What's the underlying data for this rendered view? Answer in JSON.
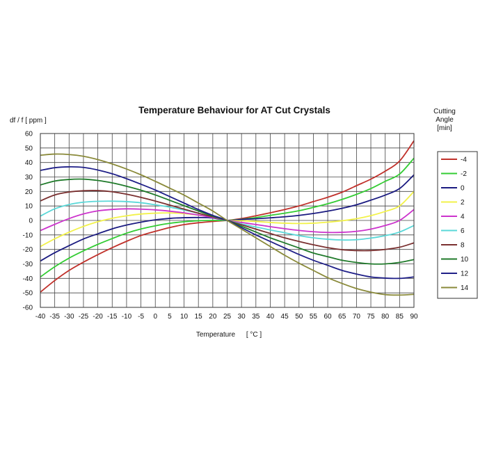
{
  "chart_data": {
    "type": "line",
    "title": "Temperature Behaviour for AT Cut Crystals",
    "xlabel": "Temperature",
    "xunit": "[ °C ]",
    "ylabel": "df / f [ ppm ]",
    "legend_title": "Cutting Angle [min]",
    "legend_title_lines": [
      "Cutting",
      "Angle",
      "[min]"
    ],
    "legend_position": "right",
    "grid": true,
    "xlim": [
      -40,
      90
    ],
    "ylim": [
      -60,
      60
    ],
    "x_ticks": [
      -40,
      -35,
      -30,
      -25,
      -20,
      -15,
      -10,
      -5,
      0,
      5,
      10,
      15,
      20,
      25,
      30,
      35,
      40,
      45,
      50,
      55,
      60,
      65,
      70,
      75,
      80,
      85,
      90
    ],
    "y_ticks": [
      60,
      50,
      40,
      30,
      20,
      10,
      0,
      -10,
      -20,
      -30,
      -40,
      -50,
      -60
    ],
    "x": [
      -40,
      -35,
      -30,
      -25,
      -20,
      -15,
      -10,
      -5,
      0,
      5,
      10,
      15,
      20,
      25,
      30,
      35,
      40,
      45,
      50,
      55,
      60,
      65,
      70,
      75,
      80,
      85,
      90
    ],
    "series": [
      {
        "name": "-4",
        "color": "#c0302a",
        "values": [
          -49.5,
          -41.5,
          -34.5,
          -28.8,
          -23.6,
          -18.8,
          -14.4,
          -10.4,
          -7.5,
          -4.9,
          -2.9,
          -1.6,
          -0.7,
          0,
          1.3,
          3.2,
          5.3,
          7.5,
          10,
          13,
          16,
          19.5,
          24,
          28.5,
          34,
          41,
          55
        ]
      },
      {
        "name": "-2",
        "color": "#33cc33",
        "values": [
          -39,
          -32,
          -26,
          -21,
          -16.5,
          -12.5,
          -8.8,
          -5.9,
          -3.7,
          -2,
          -0.9,
          -0.2,
          0,
          0,
          0.8,
          2,
          3.5,
          5,
          6.7,
          9,
          11.5,
          14.5,
          18,
          22,
          27,
          32,
          43
        ]
      },
      {
        "name": "0",
        "color": "#1a1a80",
        "values": [
          -28,
          -22.3,
          -17.4,
          -12.8,
          -9.2,
          -5.8,
          -3.2,
          -1.2,
          0.4,
          1.4,
          1.9,
          2,
          1.7,
          0,
          0.7,
          1.2,
          1.8,
          2.5,
          3.5,
          4.8,
          6.4,
          8.4,
          10.8,
          14,
          17.5,
          22,
          31.5
        ]
      },
      {
        "name": "2",
        "color": "#f2f24a",
        "values": [
          -18,
          -12.7,
          -8.1,
          -4.1,
          -0.9,
          1.5,
          3.2,
          4.4,
          5,
          5.2,
          4.7,
          3.7,
          2.5,
          0,
          -0.2,
          -0.7,
          -1.4,
          -1.9,
          -2.1,
          -1.9,
          -1.2,
          -0.2,
          1.2,
          3.3,
          6.2,
          10,
          20
        ]
      },
      {
        "name": "4",
        "color": "#cc33cc",
        "values": [
          -7,
          -2.7,
          1.3,
          4.5,
          6.6,
          7.6,
          8,
          7.8,
          7.3,
          6.4,
          5.2,
          3.7,
          2,
          0,
          -1.4,
          -2.8,
          -4.3,
          -5.7,
          -6.9,
          -7.8,
          -8.3,
          -8.2,
          -7.5,
          -6,
          -3.5,
          0,
          7.5
        ]
      },
      {
        "name": "6",
        "color": "#5ad8d8",
        "values": [
          3,
          8,
          11,
          12.6,
          13.2,
          13.3,
          13,
          12.2,
          10.8,
          9.2,
          7.2,
          5,
          2.5,
          0,
          -2.4,
          -4.5,
          -6.6,
          -8.5,
          -10.5,
          -12,
          -13,
          -13.5,
          -13.3,
          -12.2,
          -10.5,
          -8,
          -3.5
        ]
      },
      {
        "name": "8",
        "color": "#7a3030",
        "values": [
          13.5,
          17.6,
          19.6,
          20.5,
          20.6,
          19.8,
          18.1,
          15.9,
          13.4,
          10.6,
          7.8,
          5,
          2.5,
          0,
          -3,
          -6,
          -9,
          -12,
          -14.5,
          -16.8,
          -18.8,
          -20.2,
          -20.8,
          -20.8,
          -20,
          -18.5,
          -15.5
        ]
      },
      {
        "name": "10",
        "color": "#1f7a2a",
        "values": [
          24.5,
          27.2,
          28.3,
          28.5,
          27.6,
          25.9,
          23.6,
          20.9,
          17.6,
          13.9,
          10.2,
          6.5,
          3,
          0,
          -4,
          -8,
          -12,
          -15.5,
          -19,
          -22.5,
          -25,
          -27.5,
          -29,
          -30,
          -30,
          -29,
          -27
        ]
      },
      {
        "name": "12",
        "color": "#1f1f88",
        "values": [
          34.5,
          36.4,
          37,
          36.6,
          34.8,
          32.2,
          28.8,
          25,
          21,
          16.5,
          12,
          7.5,
          3.5,
          0,
          -5,
          -10,
          -14.5,
          -19,
          -23.5,
          -27.5,
          -31,
          -34.5,
          -37,
          -39,
          -39.8,
          -40,
          -39
        ]
      },
      {
        "name": "14",
        "color": "#8a8a3a",
        "values": [
          45,
          45.8,
          45.5,
          44.3,
          42,
          39,
          35.5,
          31.5,
          27,
          22.3,
          17.5,
          12,
          6.5,
          0,
          -6,
          -12,
          -18,
          -24,
          -29.5,
          -34.5,
          -39.5,
          -43.5,
          -47,
          -49.5,
          -51.2,
          -51.5,
          -51
        ]
      }
    ]
  }
}
